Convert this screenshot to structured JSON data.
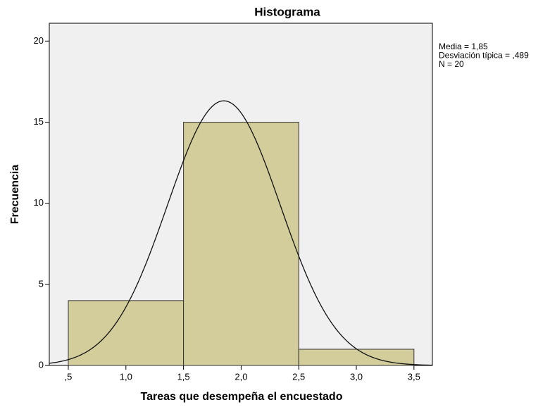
{
  "chart_data": {
    "type": "histogram",
    "title": "Histograma",
    "xlabel": "Tareas que desempeña el encuestado",
    "ylabel": "Frecuencia",
    "bins": [
      0.5,
      1.5,
      2.5,
      3.5
    ],
    "values": [
      4,
      15,
      1
    ],
    "color": "#d3cd9c",
    "xlim": [
      0.335,
      3.66
    ],
    "ylim": [
      0,
      21.1
    ],
    "xticks": [
      {
        "value": 0.5,
        "label": ",5"
      },
      {
        "value": 1.0,
        "label": "1,0"
      },
      {
        "value": 1.5,
        "label": "1,5"
      },
      {
        "value": 2.0,
        "label": "2,0"
      },
      {
        "value": 2.5,
        "label": "2,5"
      },
      {
        "value": 3.0,
        "label": "3,0"
      },
      {
        "value": 3.5,
        "label": "3,5"
      }
    ],
    "yticks": [
      0,
      5,
      10,
      15,
      20
    ],
    "normal_curve": {
      "mean": 1.85,
      "sd": 0.489,
      "n": 20
    },
    "annotations": [
      "Media = 1,85",
      "Desviación típica = ,489",
      "N = 20"
    ]
  }
}
